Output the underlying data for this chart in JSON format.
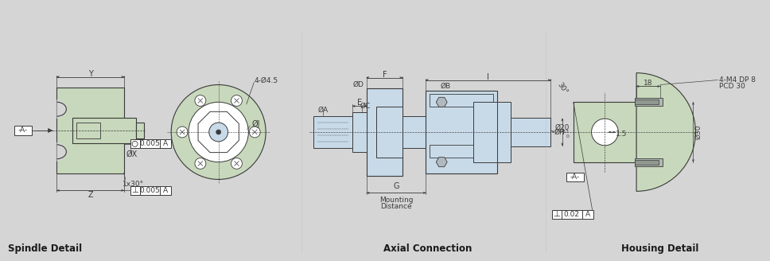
{
  "bg_color": "#d5d5d5",
  "part_fill_green": "#c8d8bc",
  "part_fill_blue": "#c8dae8",
  "line_color": "#3a3a3a",
  "dim_color": "#3a3a3a",
  "title_color": "#1a1a1a",
  "spindle_label": "Spindle Detail",
  "axial_label": "Axial Connection",
  "housing_label": "Housing Detail"
}
